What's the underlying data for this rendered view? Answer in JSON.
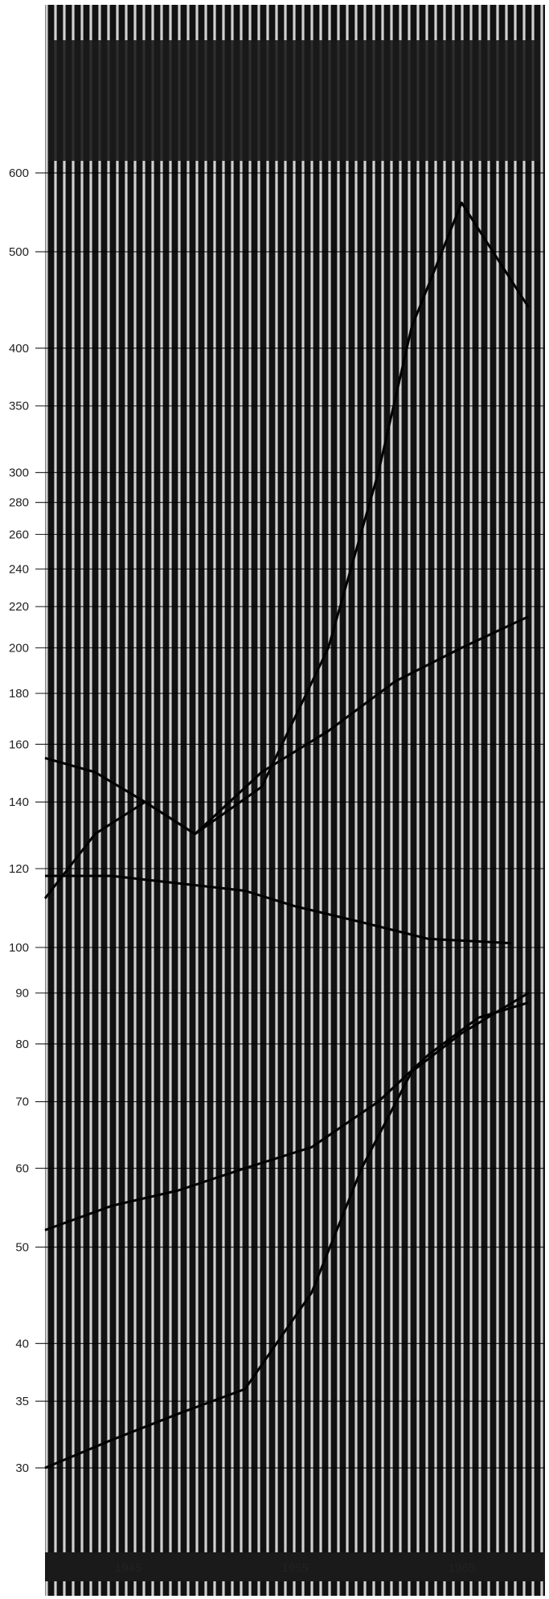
{
  "chart_data": {
    "type": "line",
    "title": "",
    "xlabel": "",
    "ylabel": "",
    "y_scale": "log",
    "ylim": [
      24,
      640
    ],
    "xlim": [
      1940,
      1970
    ],
    "y_ticks": [
      30,
      35,
      40,
      50,
      60,
      70,
      80,
      90,
      100,
      120,
      140,
      160,
      180,
      200,
      220,
      240,
      260,
      280,
      300,
      350,
      400,
      500,
      600
    ],
    "x_tick_labels": [
      {
        "x": 1945,
        "label": "1945"
      },
      {
        "x": 1955,
        "label": "1955"
      },
      {
        "x": 1965,
        "label": "1965"
      }
    ],
    "grid": "vertical",
    "legend_lines": [
      "",
      "",
      "",
      "",
      ""
    ],
    "colors": {
      "background": "#121212",
      "grid": "#d0d0d0",
      "axis": "#000000",
      "line": "#000000"
    },
    "series": [
      {
        "name": "",
        "points": [
          [
            1940,
            155
          ],
          [
            1943,
            150
          ],
          [
            1946,
            140
          ],
          [
            1949,
            130
          ],
          [
            1953,
            145
          ],
          [
            1957,
            200
          ],
          [
            1960,
            300
          ],
          [
            1962,
            420
          ],
          [
            1965,
            560
          ],
          [
            1969,
            440
          ]
        ]
      },
      {
        "name": "",
        "points": [
          [
            1940,
            112
          ],
          [
            1943,
            130
          ],
          [
            1946,
            140
          ],
          [
            1949,
            130
          ],
          [
            1953,
            150
          ],
          [
            1957,
            165
          ],
          [
            1961,
            185
          ],
          [
            1965,
            200
          ],
          [
            1969,
            215
          ]
        ]
      },
      {
        "name": "",
        "points": [
          [
            1940,
            118
          ],
          [
            1944,
            118
          ],
          [
            1948,
            116
          ],
          [
            1952,
            114
          ],
          [
            1955,
            110
          ],
          [
            1959,
            106
          ],
          [
            1963,
            102
          ],
          [
            1968,
            101
          ]
        ]
      },
      {
        "name": "",
        "points": [
          [
            1940,
            52
          ],
          [
            1944,
            55
          ],
          [
            1948,
            57
          ],
          [
            1952,
            60
          ],
          [
            1956,
            63
          ],
          [
            1960,
            70
          ],
          [
            1963,
            78
          ],
          [
            1966,
            85
          ],
          [
            1969,
            88
          ]
        ]
      },
      {
        "name": "",
        "points": [
          [
            1940,
            30
          ],
          [
            1944,
            32
          ],
          [
            1948,
            34
          ],
          [
            1952,
            36
          ],
          [
            1956,
            45
          ],
          [
            1959,
            60
          ],
          [
            1962,
            75
          ],
          [
            1965,
            82
          ],
          [
            1969,
            90
          ]
        ]
      }
    ],
    "series_labels": [
      {
        "series": 0,
        "text": ""
      },
      {
        "series": 2,
        "text": ""
      },
      {
        "series": 3,
        "text": ""
      },
      {
        "series": 4,
        "text": ""
      }
    ]
  }
}
